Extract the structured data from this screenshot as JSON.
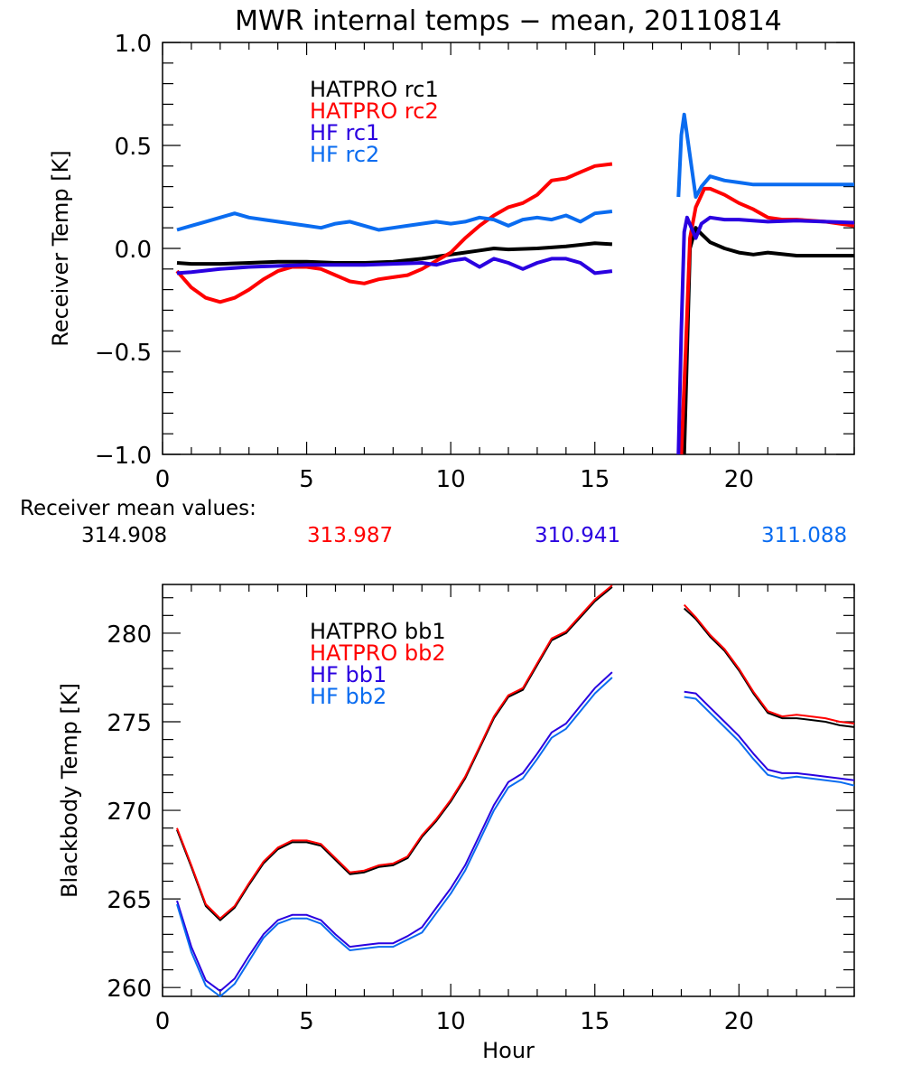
{
  "title": "MWR internal temps − mean, 20110814",
  "mean_values_label": "Receiver mean values:",
  "mean_values": [
    {
      "value": "314.908",
      "color": "#000000"
    },
    {
      "value": "313.987",
      "color": "#ff0000"
    },
    {
      "value": "310.941",
      "color": "#2a00e0"
    },
    {
      "value": "311.088",
      "color": "#0a6cf0"
    }
  ],
  "chart_data": [
    {
      "type": "line",
      "title": "MWR internal temps − mean, 20110814",
      "xlabel": "",
      "ylabel": "Receiver Temp [K]",
      "xlim": [
        0,
        24
      ],
      "ylim": [
        -1.0,
        1.0
      ],
      "x_ticks": [
        0,
        5,
        10,
        15,
        20
      ],
      "x_tick_labels": [
        "0",
        "5",
        "10",
        "15",
        "20"
      ],
      "y_ticks": [
        -1.0,
        -0.5,
        0.0,
        0.5,
        1.0
      ],
      "y_tick_labels": [
        "−1.0",
        "−0.5",
        "0.0",
        "0.5",
        "1.0"
      ],
      "legend_position": "top-left",
      "grid": false,
      "series": [
        {
          "name": "HATPRO rc1",
          "color": "#000000",
          "segments": [
            {
              "x": [
                0.5,
                1,
                2,
                3,
                4,
                5,
                6,
                7,
                8,
                9,
                10,
                11,
                11.5,
                12,
                13,
                14,
                15,
                15.6
              ],
              "y": [
                -0.07,
                -0.075,
                -0.075,
                -0.07,
                -0.065,
                -0.065,
                -0.07,
                -0.07,
                -0.065,
                -0.05,
                -0.03,
                -0.01,
                0.0,
                -0.005,
                0.0,
                0.01,
                0.025,
                0.02
              ]
            },
            {
              "x": [
                18.1,
                18.2,
                18.3,
                18.5,
                18.7,
                19,
                19.5,
                20,
                20.5,
                21,
                22,
                23,
                24
              ],
              "y": [
                -1.0,
                -0.5,
                0.0,
                0.1,
                0.07,
                0.03,
                0.0,
                -0.02,
                -0.03,
                -0.02,
                -0.035,
                -0.035,
                -0.035
              ]
            }
          ]
        },
        {
          "name": "HATPRO rc2",
          "color": "#ff0000",
          "segments": [
            {
              "x": [
                0.5,
                1,
                1.5,
                2,
                2.5,
                3,
                3.5,
                4,
                4.5,
                5,
                5.5,
                6,
                6.5,
                7,
                7.5,
                8,
                8.5,
                9,
                9.5,
                10,
                10.5,
                11,
                11.5,
                12,
                12.5,
                13,
                13.5,
                14,
                14.5,
                15,
                15.6
              ],
              "y": [
                -0.11,
                -0.19,
                -0.24,
                -0.26,
                -0.24,
                -0.2,
                -0.15,
                -0.11,
                -0.09,
                -0.09,
                -0.1,
                -0.13,
                -0.16,
                -0.17,
                -0.15,
                -0.14,
                -0.13,
                -0.1,
                -0.06,
                -0.02,
                0.05,
                0.11,
                0.16,
                0.2,
                0.22,
                0.26,
                0.33,
                0.34,
                0.37,
                0.4,
                0.41
              ]
            },
            {
              "x": [
                18.0,
                18.15,
                18.3,
                18.5,
                18.8,
                19,
                19.5,
                20,
                20.5,
                21,
                21.5,
                22,
                23,
                24
              ],
              "y": [
                -1.0,
                -0.5,
                0.05,
                0.2,
                0.29,
                0.29,
                0.26,
                0.22,
                0.19,
                0.15,
                0.14,
                0.14,
                0.13,
                0.11
              ]
            }
          ]
        },
        {
          "name": "HF rc1",
          "color": "#2a00e0",
          "segments": [
            {
              "x": [
                0.5,
                1,
                2,
                3,
                4,
                5,
                6,
                7,
                8,
                9,
                9.5,
                10,
                10.5,
                11,
                11.5,
                12,
                12.5,
                13,
                13.5,
                14,
                14.5,
                15,
                15.6
              ],
              "y": [
                -0.12,
                -0.115,
                -0.1,
                -0.09,
                -0.085,
                -0.08,
                -0.08,
                -0.08,
                -0.075,
                -0.07,
                -0.08,
                -0.06,
                -0.05,
                -0.09,
                -0.05,
                -0.07,
                -0.1,
                -0.07,
                -0.05,
                -0.05,
                -0.07,
                -0.12,
                -0.11
              ]
            },
            {
              "x": [
                17.9,
                18.0,
                18.1,
                18.2,
                18.5,
                18.7,
                19,
                19.5,
                20,
                21,
                22,
                23,
                24
              ],
              "y": [
                -1.0,
                -0.4,
                0.08,
                0.15,
                0.05,
                0.12,
                0.15,
                0.14,
                0.14,
                0.13,
                0.135,
                0.13,
                0.125
              ]
            }
          ]
        },
        {
          "name": "HF rc2",
          "color": "#0a6cf0",
          "segments": [
            {
              "x": [
                0.5,
                1,
                1.5,
                2,
                2.5,
                3,
                3.5,
                4,
                4.5,
                5,
                5.5,
                6,
                6.5,
                7,
                7.5,
                8,
                8.5,
                9,
                9.5,
                10,
                10.5,
                11,
                11.5,
                12,
                12.5,
                13,
                13.5,
                14,
                14.5,
                15,
                15.6
              ],
              "y": [
                0.09,
                0.11,
                0.13,
                0.15,
                0.17,
                0.15,
                0.14,
                0.13,
                0.12,
                0.11,
                0.1,
                0.12,
                0.13,
                0.11,
                0.09,
                0.1,
                0.11,
                0.12,
                0.13,
                0.12,
                0.13,
                0.15,
                0.14,
                0.11,
                0.14,
                0.15,
                0.14,
                0.16,
                0.13,
                0.17,
                0.18
              ]
            },
            {
              "x": [
                17.9,
                18.0,
                18.1,
                18.25,
                18.5,
                18.7,
                19,
                19.5,
                20,
                20.5,
                21,
                22,
                23,
                24
              ],
              "y": [
                0.25,
                0.55,
                0.65,
                0.5,
                0.25,
                0.3,
                0.35,
                0.33,
                0.32,
                0.31,
                0.31,
                0.31,
                0.31,
                0.31
              ]
            }
          ]
        }
      ]
    },
    {
      "type": "line",
      "title": "",
      "xlabel": "Hour",
      "ylabel": "Blackbody Temp [K]",
      "xlim": [
        0,
        24
      ],
      "ylim": [
        259.5,
        282.75
      ],
      "x_ticks": [
        0,
        5,
        10,
        15,
        20
      ],
      "x_tick_labels": [
        "0",
        "5",
        "10",
        "15",
        "20"
      ],
      "y_ticks": [
        260,
        265,
        270,
        275,
        280
      ],
      "y_tick_labels": [
        "260",
        "265",
        "270",
        "275",
        "280"
      ],
      "legend_position": "top-left",
      "grid": false,
      "series": [
        {
          "name": "HATPRO bb1",
          "color": "#000000",
          "segments": [
            {
              "x": [
                0.5,
                1,
                1.5,
                2,
                2.5,
                3,
                3.5,
                4,
                4.5,
                5,
                5.5,
                6,
                6.5,
                7,
                7.5,
                8,
                8.5,
                9,
                9.5,
                10,
                10.5,
                11,
                11.5,
                12,
                12.5,
                13,
                13.5,
                14,
                14.5,
                15,
                15.6
              ],
              "y": [
                268.9,
                266.8,
                264.6,
                263.8,
                264.5,
                265.8,
                267.0,
                267.8,
                268.2,
                268.2,
                268.0,
                267.2,
                266.4,
                266.5,
                266.8,
                266.9,
                267.3,
                268.5,
                269.4,
                270.5,
                271.8,
                273.5,
                275.2,
                276.4,
                276.8,
                278.2,
                279.6,
                280.0,
                280.9,
                281.8,
                282.6
              ]
            },
            {
              "x": [
                18.1,
                18.5,
                19,
                19.5,
                20,
                20.5,
                21,
                21.5,
                22,
                22.5,
                23,
                23.5,
                24
              ],
              "y": [
                281.4,
                280.8,
                279.8,
                279.0,
                277.9,
                276.6,
                275.5,
                275.2,
                275.2,
                275.1,
                275.0,
                274.8,
                274.7
              ]
            }
          ]
        },
        {
          "name": "HATPRO bb2",
          "color": "#ff0000",
          "segments": [
            {
              "x": [
                0.5,
                1,
                1.5,
                2,
                2.5,
                3,
                3.5,
                4,
                4.5,
                5,
                5.5,
                6,
                6.5,
                7,
                7.5,
                8,
                8.5,
                9,
                9.5,
                10,
                10.5,
                11,
                11.5,
                12,
                12.5,
                13,
                13.5,
                14,
                14.5,
                15,
                15.6
              ],
              "y": [
                269.0,
                266.9,
                264.7,
                263.9,
                264.6,
                265.9,
                267.1,
                267.9,
                268.3,
                268.3,
                268.1,
                267.3,
                266.5,
                266.6,
                266.9,
                267.0,
                267.4,
                268.6,
                269.5,
                270.6,
                271.9,
                273.6,
                275.3,
                276.5,
                276.9,
                278.3,
                279.7,
                280.1,
                281.0,
                281.9,
                282.7
              ]
            },
            {
              "x": [
                18.1,
                18.5,
                19,
                19.5,
                20,
                20.5,
                21,
                21.5,
                22,
                22.5,
                23,
                23.5,
                24
              ],
              "y": [
                281.6,
                280.9,
                279.9,
                279.1,
                278.0,
                276.7,
                275.6,
                275.3,
                275.4,
                275.3,
                275.2,
                275.0,
                274.9
              ]
            }
          ]
        },
        {
          "name": "HF bb1",
          "color": "#2a00e0",
          "segments": [
            {
              "x": [
                0.5,
                1,
                1.5,
                2,
                2.5,
                3,
                3.5,
                4,
                4.5,
                5,
                5.5,
                6,
                6.5,
                7,
                7.5,
                8,
                8.5,
                9,
                9.5,
                10,
                10.5,
                11,
                11.5,
                12,
                12.5,
                13,
                13.5,
                14,
                14.5,
                15,
                15.6
              ],
              "y": [
                264.9,
                262.3,
                260.4,
                259.8,
                260.5,
                261.8,
                263.0,
                263.8,
                264.1,
                264.1,
                263.8,
                263.0,
                262.3,
                262.4,
                262.5,
                262.5,
                262.9,
                263.4,
                264.5,
                265.6,
                266.9,
                268.6,
                270.3,
                271.6,
                272.1,
                273.2,
                274.4,
                274.9,
                275.9,
                276.9,
                277.8
              ]
            },
            {
              "x": [
                18.1,
                18.5,
                19,
                19.5,
                20,
                20.5,
                21,
                21.5,
                22,
                22.5,
                23,
                23.5,
                24
              ],
              "y": [
                276.7,
                276.6,
                275.8,
                275.0,
                274.2,
                273.2,
                272.3,
                272.1,
                272.1,
                272.0,
                271.9,
                271.8,
                271.7
              ]
            }
          ]
        },
        {
          "name": "HF bb2",
          "color": "#0a6cf0",
          "segments": [
            {
              "x": [
                0.5,
                1,
                1.5,
                2,
                2.5,
                3,
                3.5,
                4,
                4.5,
                5,
                5.5,
                6,
                6.5,
                7,
                7.5,
                8,
                8.5,
                9,
                9.5,
                10,
                10.5,
                11,
                11.5,
                12,
                12.5,
                13,
                13.5,
                14,
                14.5,
                15,
                15.6
              ],
              "y": [
                264.7,
                262.0,
                260.1,
                259.5,
                260.2,
                261.5,
                262.8,
                263.6,
                263.9,
                263.9,
                263.6,
                262.8,
                262.1,
                262.2,
                262.3,
                262.3,
                262.7,
                263.1,
                264.2,
                265.3,
                266.6,
                268.3,
                270.0,
                271.3,
                271.8,
                272.9,
                274.1,
                274.6,
                275.6,
                276.6,
                277.5
              ]
            },
            {
              "x": [
                18.1,
                18.5,
                19,
                19.5,
                20,
                20.5,
                21,
                21.5,
                22,
                22.5,
                23,
                23.5,
                24
              ],
              "y": [
                276.4,
                276.3,
                275.5,
                274.7,
                273.9,
                272.9,
                272.0,
                271.8,
                271.9,
                271.8,
                271.7,
                271.6,
                271.4
              ]
            }
          ]
        }
      ]
    }
  ]
}
